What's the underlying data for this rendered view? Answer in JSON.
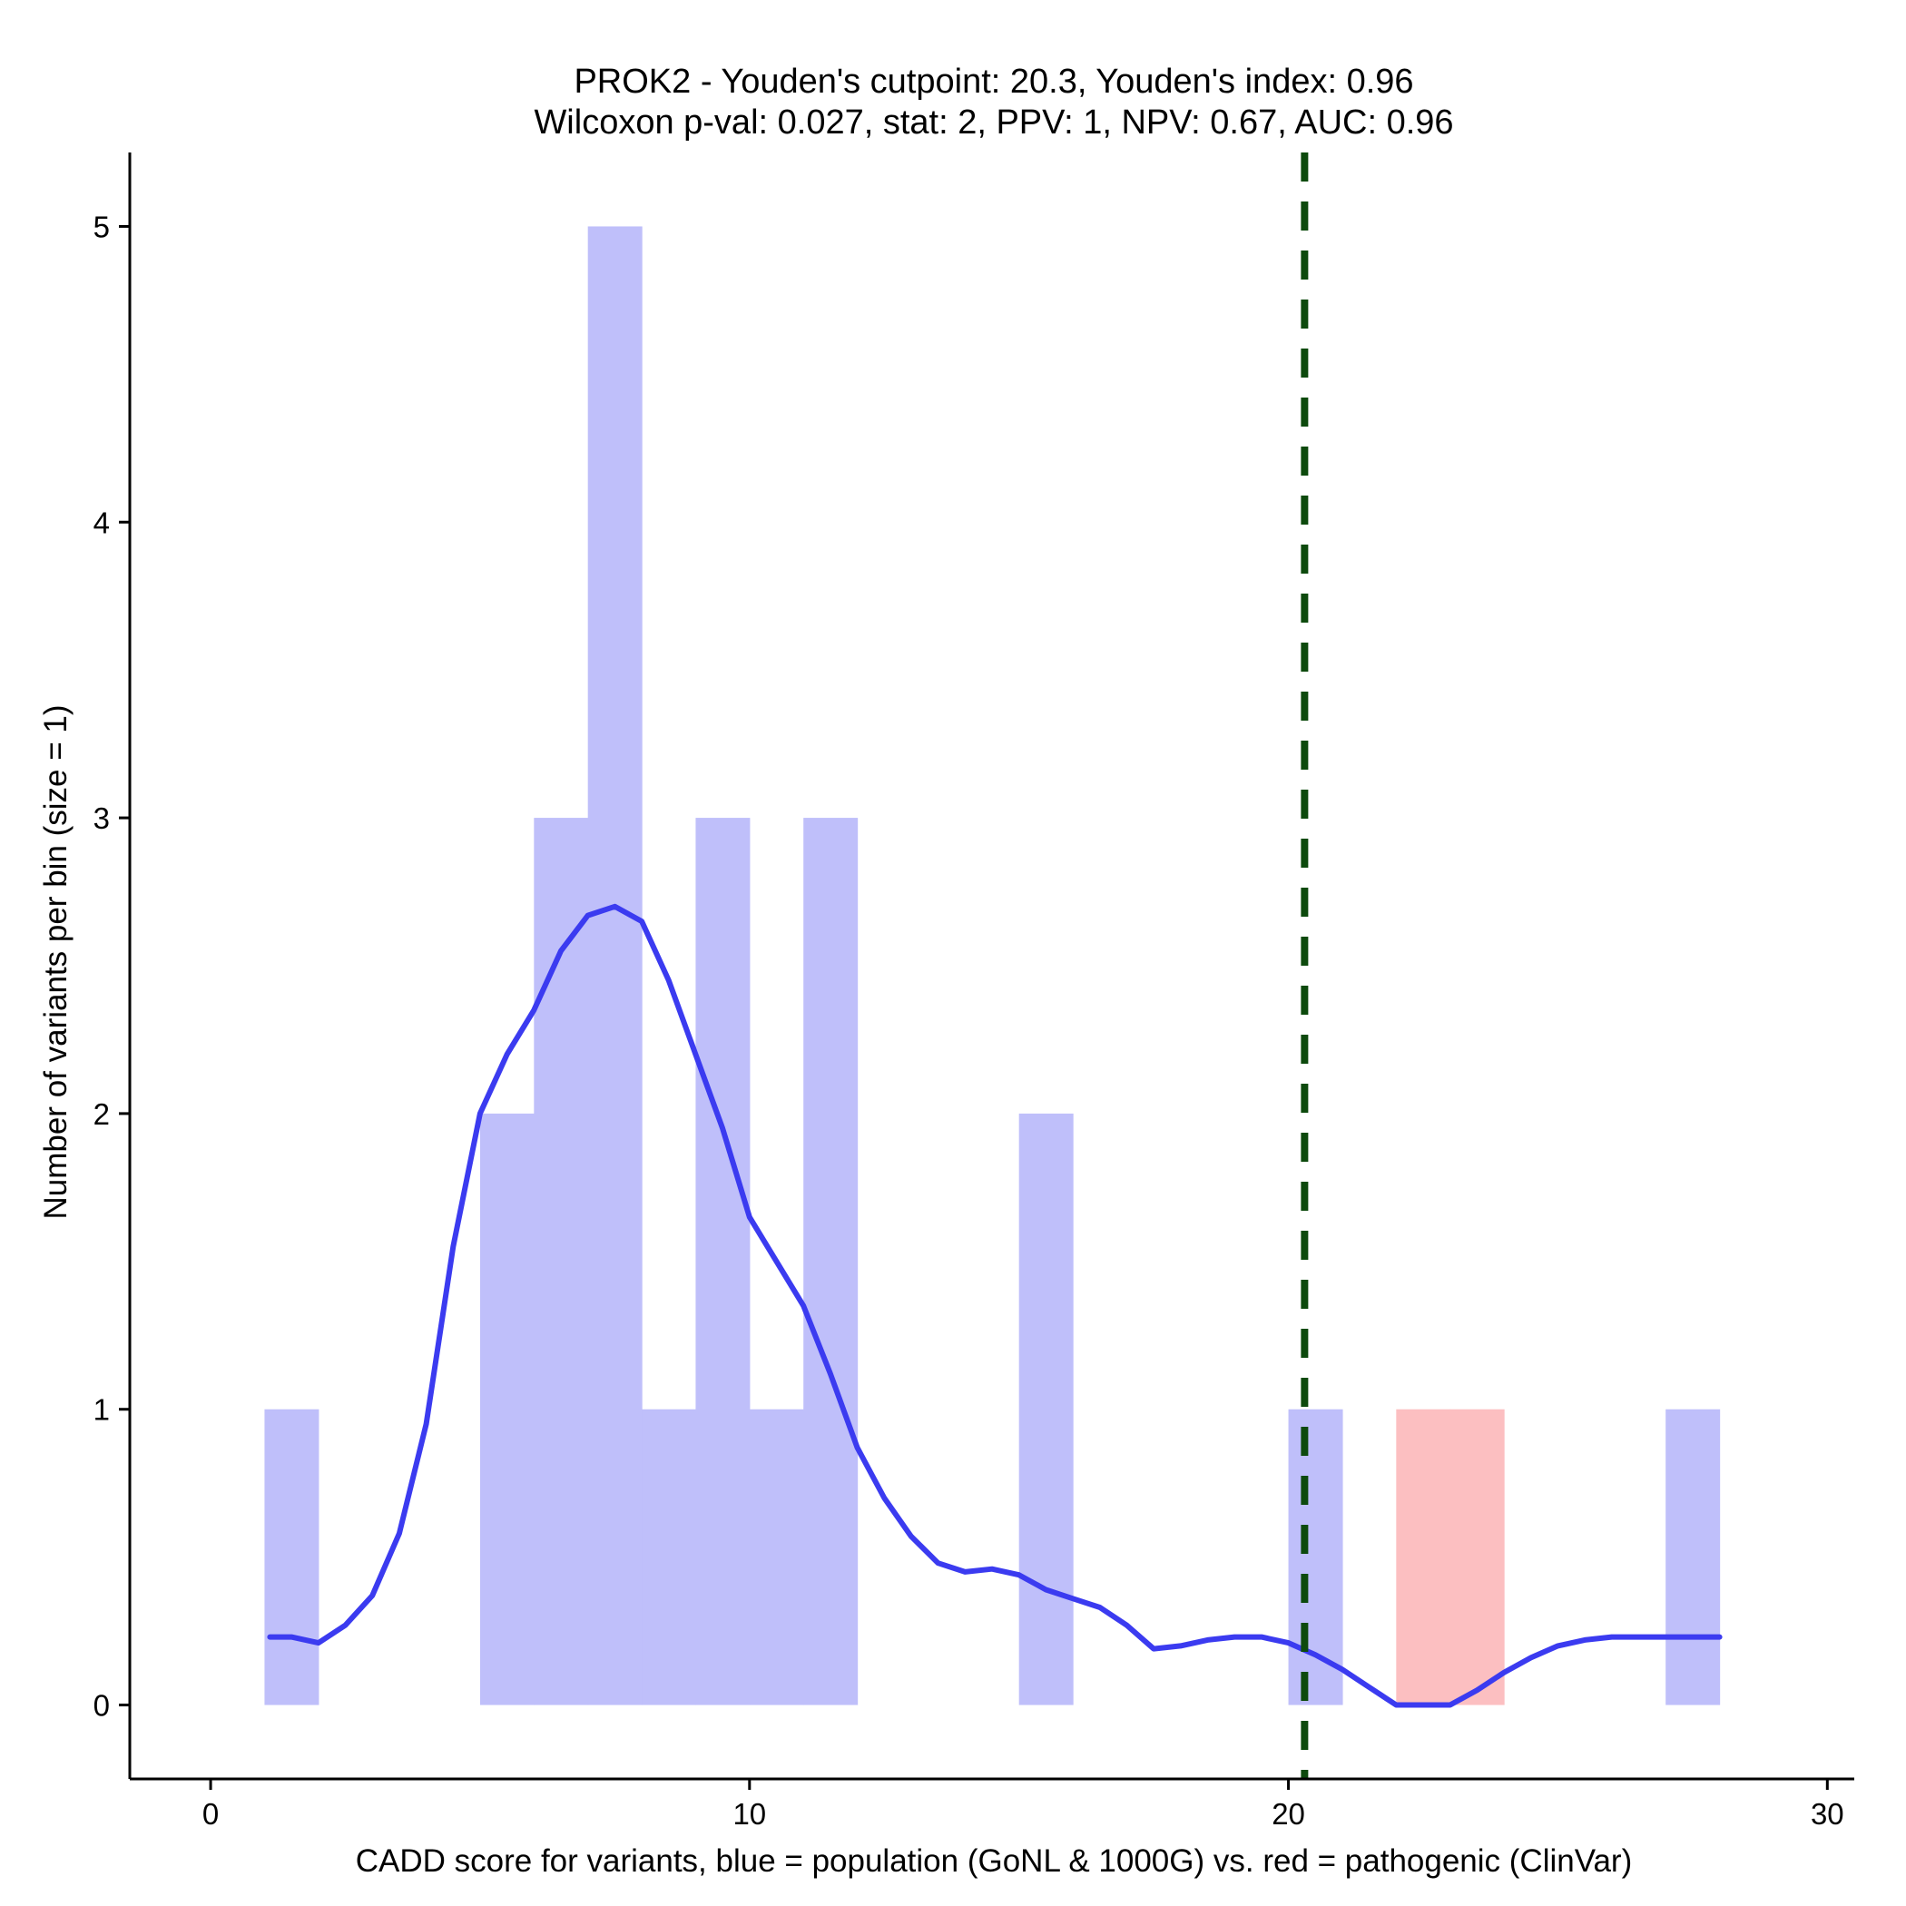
{
  "chart_data": {
    "type": "bar",
    "title": "PROK2 - Youden's cutpoint: 20.3, Youden's index: 0.96",
    "subtitle": "Wilcoxon p-val: 0.027, stat: 2, PPV: 1, NPV: 0.67, AUC: 0.96",
    "xlabel": "CADD score for variants, blue = population (GoNL & 1000G) vs. red = pathogenic (ClinVar)",
    "ylabel": "Number of variants per bin (size = 1)",
    "xlim": [
      -1.5,
      30.5
    ],
    "ylim": [
      -0.25,
      5.25
    ],
    "x_ticks": [
      0,
      10,
      20,
      30
    ],
    "y_ticks": [
      0,
      1,
      2,
      3,
      4,
      5
    ],
    "grid": false,
    "bin_size": 1,
    "series": [
      {
        "name": "population (GoNL & 1000G)",
        "color": "#bfbffa",
        "bins": [
          {
            "x0": 1,
            "x1": 2,
            "count": 1
          },
          {
            "x0": 5,
            "x1": 6,
            "count": 2
          },
          {
            "x0": 6,
            "x1": 7,
            "count": 3
          },
          {
            "x0": 7,
            "x1": 8,
            "count": 5
          },
          {
            "x0": 8,
            "x1": 9,
            "count": 1
          },
          {
            "x0": 9,
            "x1": 10,
            "count": 3
          },
          {
            "x0": 10,
            "x1": 11,
            "count": 1
          },
          {
            "x0": 11,
            "x1": 12,
            "count": 3
          },
          {
            "x0": 15,
            "x1": 16,
            "count": 2
          },
          {
            "x0": 20,
            "x1": 21,
            "count": 1
          },
          {
            "x0": 27,
            "x1": 28,
            "count": 1
          }
        ]
      },
      {
        "name": "pathogenic (ClinVar)",
        "color": "#fcbfc1",
        "bins": [
          {
            "x0": 22,
            "x1": 23,
            "count": 1
          },
          {
            "x0": 23,
            "x1": 24,
            "count": 1
          }
        ]
      }
    ],
    "density": {
      "name": "population density",
      "color": "#3b3bf0",
      "x": [
        1.1,
        1.5,
        2.0,
        2.5,
        3.0,
        3.5,
        4.0,
        4.5,
        5.0,
        5.5,
        6.0,
        6.5,
        7.0,
        7.5,
        8.0,
        8.5,
        9.0,
        9.5,
        10.0,
        10.5,
        11.0,
        11.5,
        12.0,
        12.5,
        13.0,
        13.5,
        14.0,
        14.5,
        15.0,
        15.5,
        16.0,
        16.5,
        17.0,
        17.5,
        18.0,
        18.5,
        19.0,
        19.5,
        20.0,
        20.5,
        21.0,
        21.5,
        22.0,
        22.5,
        23.0,
        23.5,
        24.0,
        24.5,
        25.0,
        25.5,
        26.0,
        26.5,
        27.0,
        27.5,
        28.0
      ],
      "y": [
        0.23,
        0.23,
        0.21,
        0.27,
        0.37,
        0.58,
        0.95,
        1.55,
        2.0,
        2.2,
        2.35,
        2.55,
        2.67,
        2.7,
        2.65,
        2.45,
        2.2,
        1.95,
        1.65,
        1.5,
        1.35,
        1.12,
        0.87,
        0.7,
        0.57,
        0.48,
        0.45,
        0.46,
        0.44,
        0.39,
        0.36,
        0.33,
        0.27,
        0.19,
        0.2,
        0.22,
        0.23,
        0.23,
        0.21,
        0.17,
        0.12,
        0.06,
        0.0,
        0.0,
        0.0,
        0.05,
        0.11,
        0.16,
        0.2,
        0.22,
        0.23,
        0.23,
        0.23,
        0.23,
        0.23
      ]
    },
    "cutpoint": {
      "x": 20.3,
      "color": "#0d4a0d",
      "style": "dashed"
    }
  }
}
